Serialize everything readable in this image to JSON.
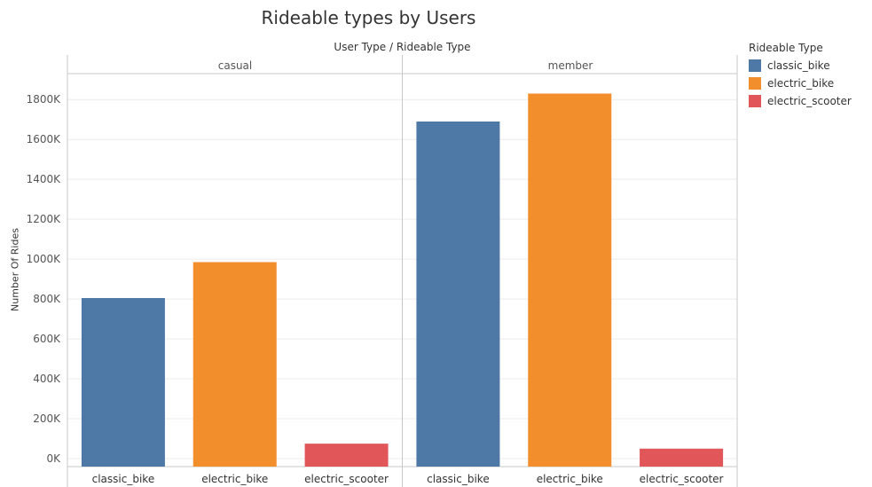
{
  "chart_data": {
    "type": "bar",
    "title": "Rideable types by Users",
    "column_header": "User Type  /  Rideable Type",
    "ylabel": "Number Of Rides",
    "ylim": [
      -40000,
      1930000
    ],
    "yticks": [
      0,
      200000,
      400000,
      600000,
      800000,
      1000000,
      1200000,
      1400000,
      1600000,
      1800000
    ],
    "ytick_labels": [
      "0K",
      "200K",
      "400K",
      "600K",
      "800K",
      "1000K",
      "1200K",
      "1400K",
      "1600K",
      "1800K"
    ],
    "panes": [
      {
        "name": "casual",
        "categories": [
          "classic_bike",
          "electric_bike",
          "electric_scooter"
        ],
        "values": [
          805000,
          985000,
          75000
        ]
      },
      {
        "name": "member",
        "categories": [
          "classic_bike",
          "electric_bike",
          "electric_scooter"
        ],
        "values": [
          1690000,
          1830000,
          50000
        ]
      }
    ],
    "legend": {
      "title": "Rideable Type",
      "placement": "right",
      "items": [
        {
          "label": "classic_bike",
          "color": "#4e79a7"
        },
        {
          "label": "electric_bike",
          "color": "#f28e2b"
        },
        {
          "label": "electric_scooter",
          "color": "#e15759"
        }
      ]
    },
    "grid": true
  }
}
